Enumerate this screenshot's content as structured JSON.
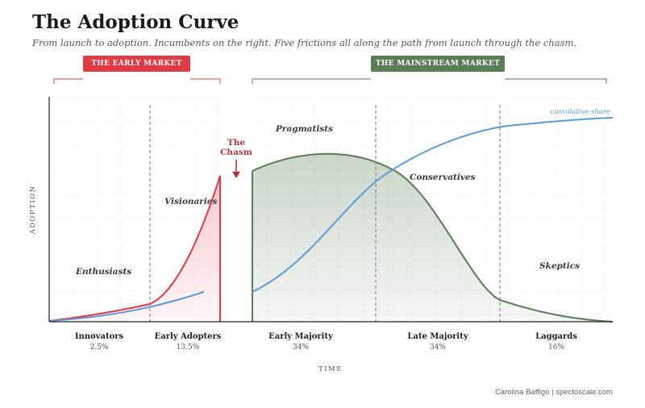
{
  "title": "The Adoption Curve",
  "subtitle": "From launch to adoption. Incumbents on the right. Five frictions all along the path from launch through the chasm.",
  "markets": {
    "early": "THE EARLY MARKET",
    "mainstream": "THE MAINSTREAM MARKET"
  },
  "chasm": {
    "line1": "The",
    "line2": "Chasm"
  },
  "curve_labels": {
    "enthusiasts": "Enthusiasts",
    "visionaries": "Visionaries",
    "pragmatists": "Pragmatists",
    "conservatives": "Conservatives",
    "skeptics": "Skeptics",
    "cumulative": "cumulative share"
  },
  "segments": [
    {
      "name": "Innovators",
      "pct": "2.5%"
    },
    {
      "name": "Early Adopters",
      "pct": "13.5%"
    },
    {
      "name": "Early Majority",
      "pct": "34%"
    },
    {
      "name": "Late Majority",
      "pct": "34%"
    },
    {
      "name": "Laggards",
      "pct": "16%"
    }
  ],
  "axes": {
    "x": "TIME",
    "y": "ADOPTION"
  },
  "credit": "Carolina Baffigo | spectoscale.com",
  "colors": {
    "early": "#e23a45",
    "mainstream": "#5a7d56",
    "cumulative": "#5b9bd5",
    "chasm": "#b03a3a"
  }
}
